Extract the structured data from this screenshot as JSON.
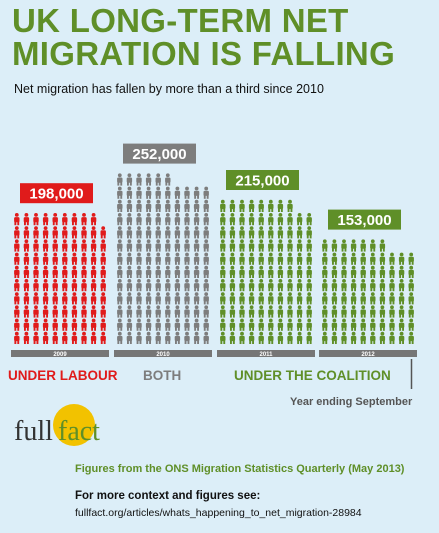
{
  "header": {
    "title_line1": "UK LONG-TERM NET",
    "title_line2": "MIGRATION IS FALLING",
    "subtitle": "Net migration has fallen by more than a third since 2010"
  },
  "chart_data": {
    "type": "bar",
    "categories": [
      "2009",
      "2010",
      "2011",
      "2012"
    ],
    "values": [
      198000,
      252000,
      215000,
      153000
    ],
    "value_labels": [
      "198,000",
      "252,000",
      "215,000",
      "153,000"
    ],
    "colors": [
      "#e01b1b",
      "#7d7d7d",
      "#5f8f28",
      "#5f8f28"
    ]
  },
  "legend": {
    "labour": "UNDER LABOUR",
    "both": "BOTH",
    "coalition": "UNDER THE COALITION",
    "labour_color": "#e01b1b",
    "both_color": "#7d7d7d",
    "coalition_color": "#5f8f28"
  },
  "axis_note": "Year ending September",
  "logo": {
    "text_left": "full",
    "text_right": "fact"
  },
  "footer": {
    "source": "Figures from the ONS Migration Statistics Quarterly (May 2013)",
    "context_label": "For more context and figures see:",
    "context_url": "fullfact.org/articles/whats_happening_to_net_migration-28984"
  }
}
